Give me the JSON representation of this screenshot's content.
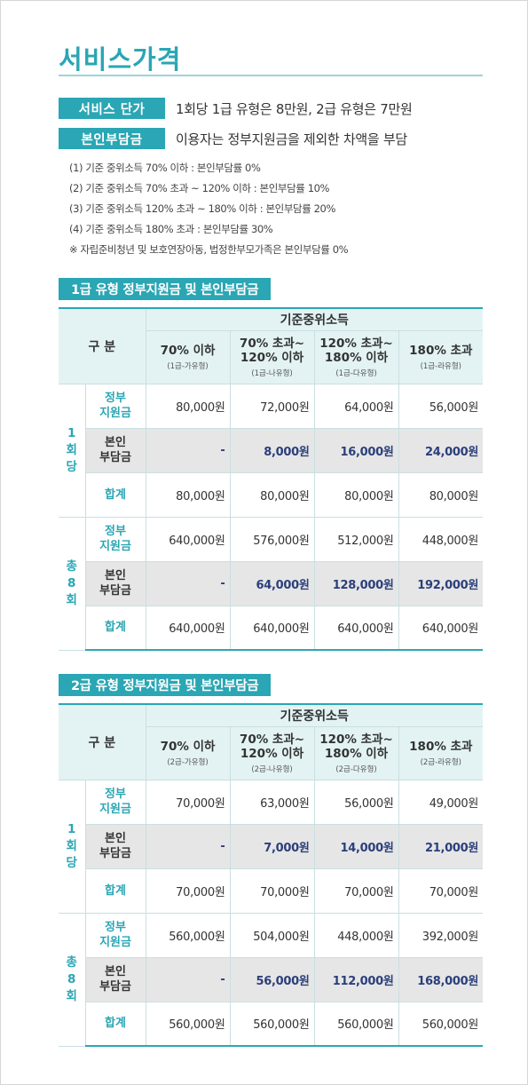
{
  "page_title": "서비스가격",
  "service_price": {
    "tag": "서비스 단가",
    "text": "1회당 1급 유형은 8만원, 2급 유형은 7만원"
  },
  "copay": {
    "tag": "본인부담금",
    "text": "이용자는 정부지원금을 제외한 차액을 부담"
  },
  "notes": [
    "(1) 기준 중위소득 70% 이하 : 본인부담률 0%",
    "(2) 기준 중위소득 70% 초과 ~ 120% 이하 : 본인부담률 10%",
    "(3) 기준 중위소득 120% 초과 ~ 180% 이하 : 본인부담률 20%",
    "(4) 기준 중위소득 180% 초과 : 본인부담률 30%",
    "※ 자립준비청년 및 보호연장아동, 법정한부모가족은 본인부담률 0%"
  ],
  "tables": [
    {
      "title": "1급 유형 정부지원금 및 본인부담금",
      "corner": "구 분",
      "income_header": "기준중위소득",
      "columns": [
        {
          "main": "70% 이하",
          "sub": "(1급-가유형)"
        },
        {
          "main": "70% 초과~\n120% 이하",
          "sub": "(1급-나유형)"
        },
        {
          "main": "120% 초과~\n180% 이하",
          "sub": "(1급-다유형)"
        },
        {
          "main": "180% 초과",
          "sub": "(1급-라유형)"
        }
      ],
      "groups": [
        {
          "label": "1\n회\n당",
          "rows": [
            {
              "label": "정부\n지원금",
              "values": [
                "80,000원",
                "72,000원",
                "64,000원",
                "56,000원"
              ]
            },
            {
              "label": "본인\n부담금",
              "values": [
                "-",
                "8,000원",
                "16,000원",
                "24,000원"
              ]
            },
            {
              "label": "합계",
              "values": [
                "80,000원",
                "80,000원",
                "80,000원",
                "80,000원"
              ]
            }
          ]
        },
        {
          "label": "총\n8\n회",
          "rows": [
            {
              "label": "정부\n지원금",
              "values": [
                "640,000원",
                "576,000원",
                "512,000원",
                "448,000원"
              ]
            },
            {
              "label": "본인\n부담금",
              "values": [
                "-",
                "64,000원",
                "128,000원",
                "192,000원"
              ]
            },
            {
              "label": "합계",
              "values": [
                "640,000원",
                "640,000원",
                "640,000원",
                "640,000원"
              ]
            }
          ]
        }
      ]
    },
    {
      "title": "2급 유형 정부지원금 및 본인부담금",
      "corner": "구 분",
      "income_header": "기준중위소득",
      "columns": [
        {
          "main": "70% 이하",
          "sub": "(2급-가유형)"
        },
        {
          "main": "70% 초과~\n120% 이하",
          "sub": "(2급-나유형)"
        },
        {
          "main": "120% 초과~\n180% 이하",
          "sub": "(2급-다유형)"
        },
        {
          "main": "180% 초과",
          "sub": "(2급-라유형)"
        }
      ],
      "groups": [
        {
          "label": "1\n회\n당",
          "rows": [
            {
              "label": "정부\n지원금",
              "values": [
                "70,000원",
                "63,000원",
                "56,000원",
                "49,000원"
              ]
            },
            {
              "label": "본인\n부담금",
              "values": [
                "-",
                "7,000원",
                "14,000원",
                "21,000원"
              ]
            },
            {
              "label": "합계",
              "values": [
                "70,000원",
                "70,000원",
                "70,000원",
                "70,000원"
              ]
            }
          ]
        },
        {
          "label": "총\n8\n회",
          "rows": [
            {
              "label": "정부\n지원금",
              "values": [
                "560,000원",
                "504,000원",
                "448,000원",
                "392,000원"
              ]
            },
            {
              "label": "본인\n부담금",
              "values": [
                "-",
                "56,000원",
                "112,000원",
                "168,000원"
              ]
            },
            {
              "label": "합계",
              "values": [
                "560,000원",
                "560,000원",
                "560,000원",
                "560,000원"
              ]
            }
          ]
        }
      ]
    }
  ],
  "colors": {
    "accent": "#2aa6b4",
    "header_bg": "#e3f3f4",
    "shade_bg": "#e6e6e6",
    "copay_text": "#2b3f7a"
  }
}
